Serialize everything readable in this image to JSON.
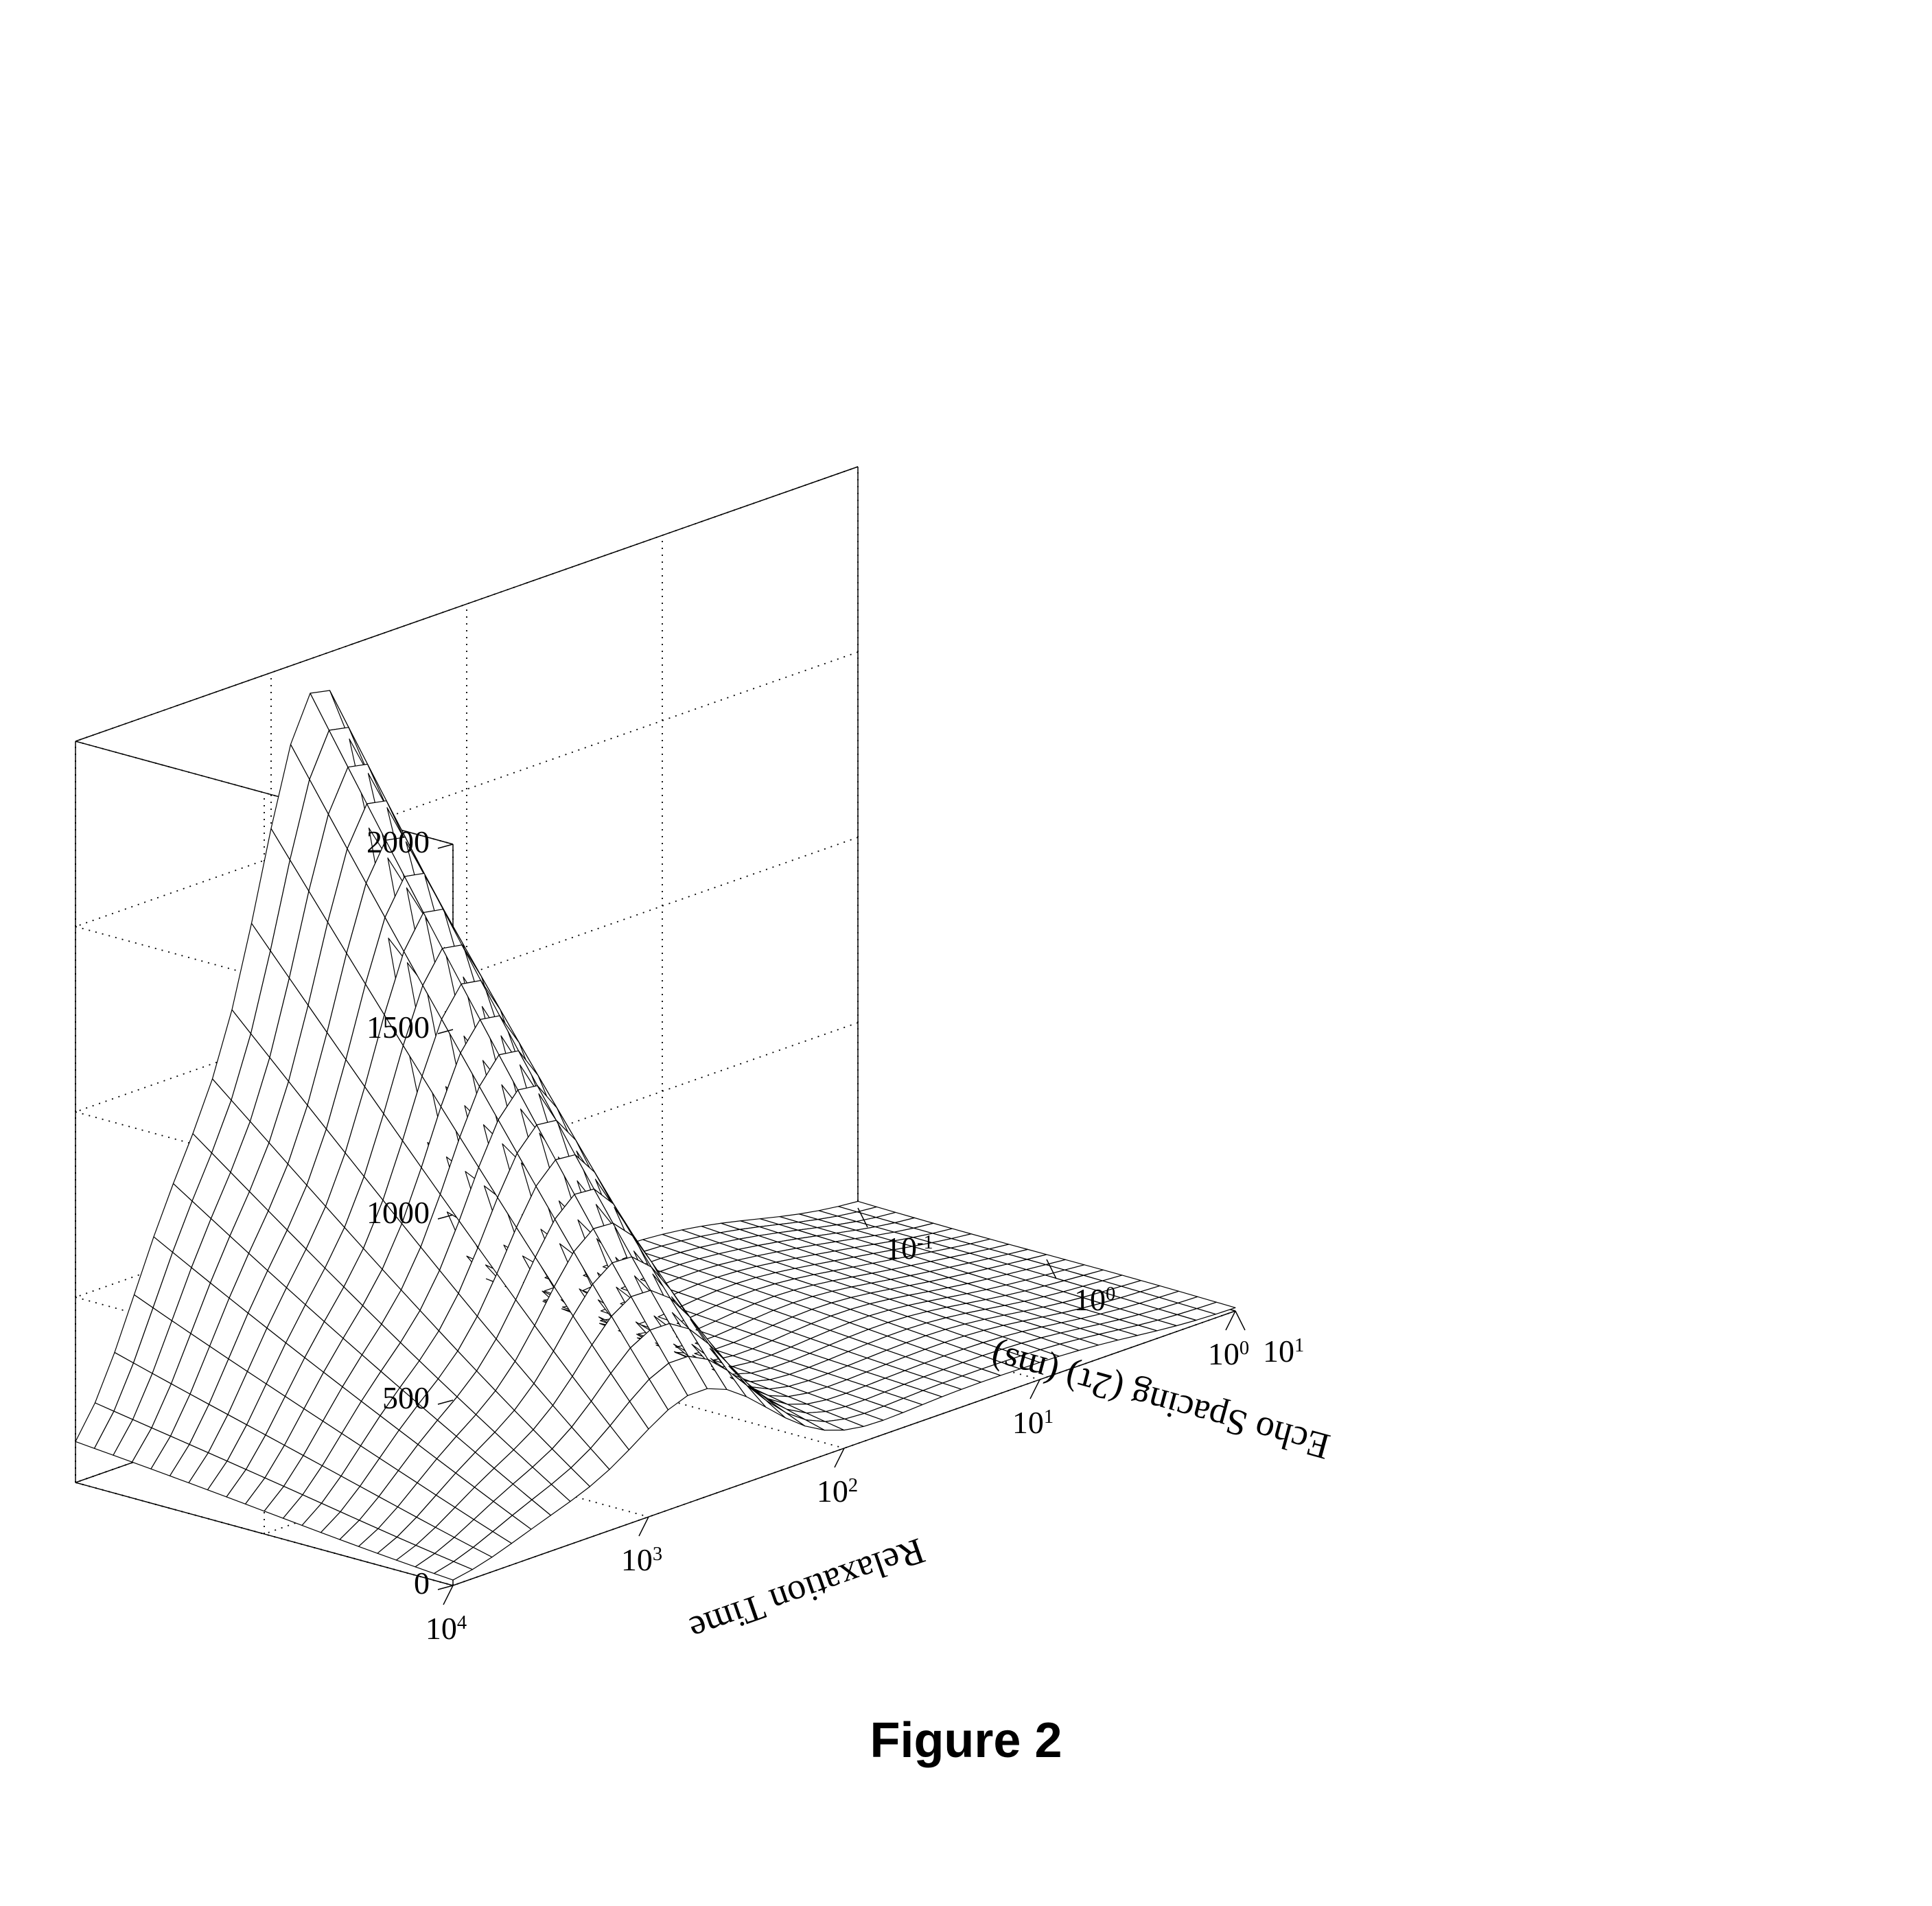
{
  "figure": {
    "caption": "Figure 2",
    "caption_fontsize": 72,
    "background_color": "#ffffff",
    "line_color": "#000000",
    "mesh_line_width": 1.2,
    "axis_line_width": 1.5,
    "face_fill": "#ffffff",
    "chart": {
      "type": "surface-wireframe-3d",
      "x_axis": {
        "label": "Relaxation Time",
        "label_fontsize": 54,
        "scale": "log",
        "range_exp": [
          0,
          4
        ],
        "tick_exponents": [
          0,
          1,
          2,
          3,
          4
        ],
        "tick_fontsize": 46
      },
      "y_axis": {
        "label": "Echo Spacing (2τ) (ms)",
        "label_fontsize": 54,
        "scale": "log",
        "range_exp": [
          -1,
          1
        ],
        "tick_exponents": [
          -1,
          0,
          1
        ],
        "tick_fontsize": 46
      },
      "z_axis": {
        "scale": "linear",
        "range": [
          0,
          2000
        ],
        "ticks": [
          0,
          500,
          1000,
          1500,
          2000
        ],
        "tick_fontsize": 46
      },
      "projection": {
        "origin_screen": [
          1250,
          1760
        ],
        "x_dir": [
          -285,
          100
        ],
        "y_dir": [
          275,
          75
        ],
        "z_dir": [
          0,
          -270
        ]
      },
      "mesh": {
        "nx": 41,
        "ny": 21
      },
      "series": {
        "description": "Two-peak distribution ridge along Relaxation Time; main ridge near log10(T)≈2.75 height ~1900 at low echo spacing decaying to ~250 at high echo spacing; secondary ridge near log10(T)≈3.5 height ~500 decaying similarly.",
        "peak1": {
          "center_logx": 2.75,
          "height_at_y0": 1900,
          "sigma_logx": 0.35,
          "decay_over_y": 0.82
        },
        "peak2": {
          "center_logx": 3.5,
          "height_at_y0": 520,
          "sigma_logx": 0.28,
          "decay_over_y": 0.85
        },
        "baseline_noise": 25
      }
    }
  }
}
